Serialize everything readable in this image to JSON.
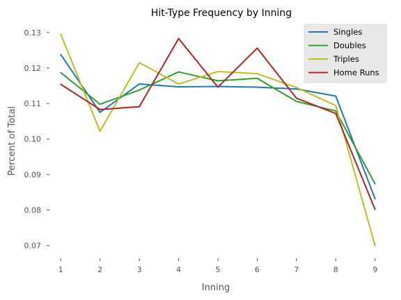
{
  "chart_data": {
    "type": "line",
    "title": "Hit-Type Frequency by Inning",
    "xlabel": "Inning",
    "ylabel": "Percent of Total",
    "x": [
      1,
      2,
      3,
      4,
      5,
      6,
      7,
      8,
      9
    ],
    "x_tick_labels": [
      "1",
      "2",
      "3",
      "4",
      "5",
      "6",
      "7",
      "8",
      "9"
    ],
    "xlim": [
      0.8,
      9.2
    ],
    "ylim": [
      0.067,
      0.1325
    ],
    "y_ticks": [
      0.07,
      0.08,
      0.09,
      0.1,
      0.11,
      0.12,
      0.13
    ],
    "y_tick_labels": [
      "0.07",
      "0.08",
      "0.09",
      "0.10",
      "0.11",
      "0.12",
      "0.13"
    ],
    "grid": false,
    "legend_position": "top-right",
    "series": [
      {
        "name": "Singles",
        "color": "#1f77b4",
        "values": [
          0.1238,
          0.1075,
          0.1155,
          0.1147,
          0.1148,
          0.1146,
          0.1141,
          0.1121,
          0.0832
        ]
      },
      {
        "name": "Doubles",
        "color": "#2ca02c",
        "values": [
          0.1187,
          0.1098,
          0.1138,
          0.1189,
          0.1164,
          0.1171,
          0.1106,
          0.1079,
          0.0874
        ]
      },
      {
        "name": "Triples",
        "color": "#bcbd22",
        "values": [
          0.1295,
          0.1022,
          0.1215,
          0.1155,
          0.119,
          0.1184,
          0.1145,
          0.1094,
          0.07
        ]
      },
      {
        "name": "Home Runs",
        "color": "#b22222",
        "values": [
          0.1154,
          0.1083,
          0.1091,
          0.1283,
          0.1146,
          0.1256,
          0.1115,
          0.1072,
          0.0802
        ]
      }
    ]
  }
}
